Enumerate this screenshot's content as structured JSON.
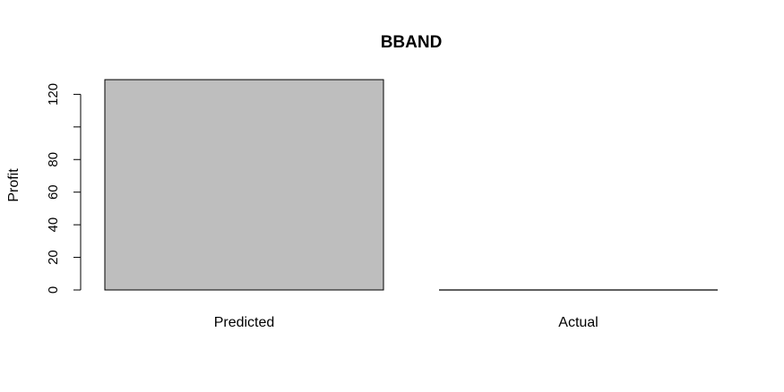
{
  "chart_data": {
    "type": "bar",
    "title": "BBAND",
    "xlabel": "",
    "ylabel": "Profit",
    "categories": [
      "Predicted",
      "Actual"
    ],
    "values": [
      129,
      0
    ],
    "ylim": [
      0,
      129
    ],
    "yticks": [
      0,
      20,
      40,
      60,
      80,
      120
    ],
    "ytick_minor": [
      100
    ],
    "grid": false,
    "bar_color": "#bebebe",
    "bar_border": "#000000"
  }
}
